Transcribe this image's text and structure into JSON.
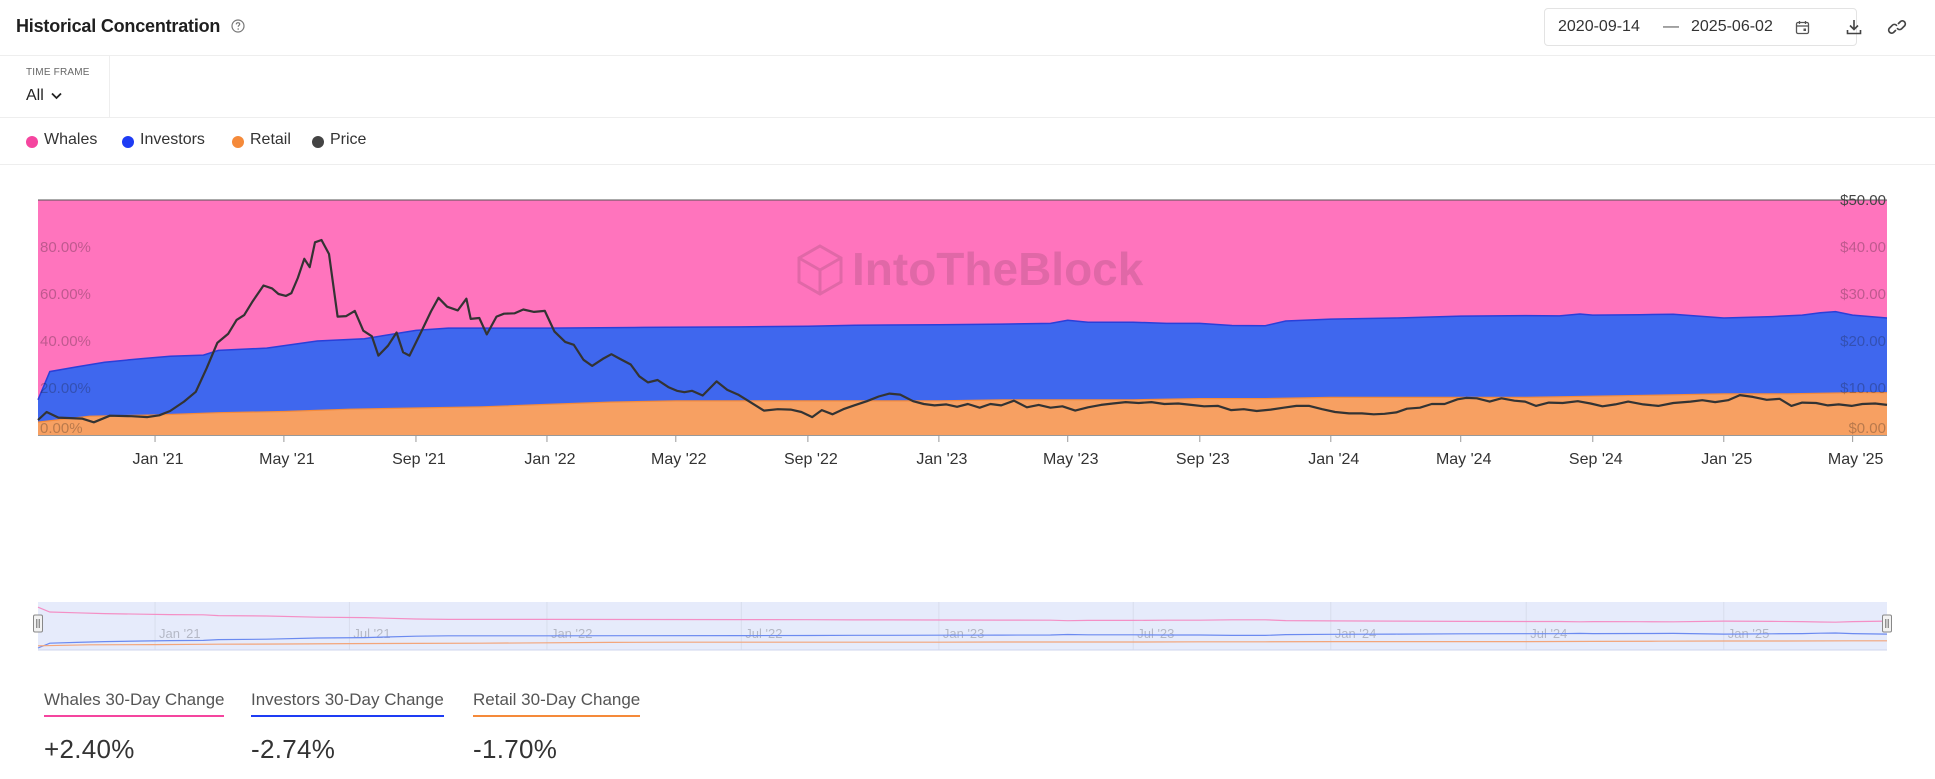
{
  "header": {
    "title": "Historical Concentration",
    "date_start": "2020-09-14",
    "date_separator": "—",
    "date_end": "2025-06-02"
  },
  "timeframe": {
    "label": "TIME FRAME",
    "value": "All"
  },
  "legend": [
    {
      "label": "Whales",
      "color": "#f5459f"
    },
    {
      "label": "Investors",
      "color": "#1e3cf4"
    },
    {
      "label": "Retail",
      "color": "#f58a3a"
    },
    {
      "label": "Price",
      "color": "#444444"
    }
  ],
  "watermark": "IntoTheBlock",
  "stats": [
    {
      "label": "Whales 30-Day Change",
      "value": "+2.40%",
      "color": "#f5459f"
    },
    {
      "label": "Investors 30-Day Change",
      "value": "-2.74%",
      "color": "#1e3cf4"
    },
    {
      "label": "Retail 30-Day Change",
      "value": "-1.70%",
      "color": "#f58a3a"
    }
  ],
  "chart_data": {
    "type": "area",
    "stacked": true,
    "x_unit": "date",
    "x_range": [
      "2020-09-14",
      "2025-06-02"
    ],
    "left_axis": {
      "ticks": [
        "0.00%",
        "20.00%",
        "40.00%",
        "60.00%",
        "80.00%"
      ],
      "range": [
        0,
        100
      ]
    },
    "right_axis": {
      "ticks": [
        "$0.00",
        "$10.00",
        "$20.00",
        "$30.00",
        "$40.00",
        "$50.00"
      ],
      "range": [
        0,
        50
      ]
    },
    "x_ticks": [
      "Jan '21",
      "May '21",
      "Sep '21",
      "Jan '22",
      "May '22",
      "Sep '22",
      "Jan '23",
      "May '23",
      "Sep '23",
      "Jan '24",
      "May '24",
      "Sep '24",
      "Jan '25",
      "May '25"
    ],
    "x_tick_dates": [
      "2021-01-01",
      "2021-05-01",
      "2021-09-01",
      "2022-01-01",
      "2022-05-01",
      "2022-09-01",
      "2023-01-01",
      "2023-05-01",
      "2023-09-01",
      "2024-01-01",
      "2024-05-01",
      "2024-09-01",
      "2025-01-01",
      "2025-05-01"
    ],
    "series": [
      {
        "name": "Retail",
        "color": "#f7a062",
        "axis": "left",
        "points": [
          [
            "2020-09-14",
            5.5
          ],
          [
            "2020-11-01",
            8
          ],
          [
            "2021-01-01",
            8.5
          ],
          [
            "2021-03-01",
            9.5
          ],
          [
            "2021-05-01",
            10
          ],
          [
            "2021-07-01",
            11
          ],
          [
            "2021-09-01",
            11.5
          ],
          [
            "2021-11-01",
            12
          ],
          [
            "2022-01-01",
            13
          ],
          [
            "2022-03-01",
            14
          ],
          [
            "2022-05-01",
            14.5
          ],
          [
            "2022-07-01",
            14.5
          ],
          [
            "2022-09-01",
            14.5
          ],
          [
            "2022-11-01",
            14.5
          ],
          [
            "2023-01-01",
            14.5
          ],
          [
            "2023-03-01",
            15
          ],
          [
            "2023-05-01",
            15
          ],
          [
            "2023-07-01",
            15
          ],
          [
            "2023-09-01",
            15.5
          ],
          [
            "2023-11-01",
            15.5
          ],
          [
            "2024-01-01",
            16
          ],
          [
            "2024-03-01",
            16
          ],
          [
            "2024-05-01",
            16
          ],
          [
            "2024-07-01",
            16
          ],
          [
            "2024-09-01",
            16.5
          ],
          [
            "2024-11-01",
            17
          ],
          [
            "2025-01-01",
            17.5
          ],
          [
            "2025-03-01",
            17.5
          ],
          [
            "2025-05-01",
            18
          ],
          [
            "2025-06-02",
            18
          ]
        ]
      },
      {
        "name": "Investors",
        "color": "#3f67ee",
        "axis": "left",
        "points": [
          [
            "2020-09-14",
            15
          ],
          [
            "2020-09-25",
            27
          ],
          [
            "2020-10-20",
            29
          ],
          [
            "2020-11-15",
            31
          ],
          [
            "2020-12-20",
            32.5
          ],
          [
            "2021-01-15",
            33.5
          ],
          [
            "2021-02-15",
            34
          ],
          [
            "2021-03-01",
            36
          ],
          [
            "2021-04-15",
            37
          ],
          [
            "2021-06-01",
            40
          ],
          [
            "2021-07-15",
            41
          ],
          [
            "2021-09-01",
            44.5
          ],
          [
            "2021-10-01",
            45.5
          ],
          [
            "2021-11-01",
            45.5
          ],
          [
            "2022-01-01",
            45.5
          ],
          [
            "2022-04-01",
            45.8
          ],
          [
            "2022-07-01",
            46
          ],
          [
            "2022-09-01",
            46.3
          ],
          [
            "2022-10-15",
            46.7
          ],
          [
            "2022-11-15",
            46.8
          ],
          [
            "2023-01-01",
            46.9
          ],
          [
            "2023-03-01",
            47.2
          ],
          [
            "2023-04-15",
            47.5
          ],
          [
            "2023-05-01",
            48.8
          ],
          [
            "2023-05-20",
            48
          ],
          [
            "2023-07-01",
            48
          ],
          [
            "2023-08-01",
            47.5
          ],
          [
            "2023-09-01",
            47.5
          ],
          [
            "2023-10-01",
            46.6
          ],
          [
            "2023-11-01",
            46.5
          ],
          [
            "2023-11-20",
            48.5
          ],
          [
            "2024-01-01",
            49.3
          ],
          [
            "2024-03-01",
            49.8
          ],
          [
            "2024-05-01",
            50.6
          ],
          [
            "2024-07-01",
            50.8
          ],
          [
            "2024-08-01",
            50.7
          ],
          [
            "2024-08-20",
            51.5
          ],
          [
            "2024-09-01",
            51
          ],
          [
            "2024-10-15",
            51.2
          ],
          [
            "2024-11-15",
            51.4
          ],
          [
            "2025-01-01",
            49.8
          ],
          [
            "2025-02-15",
            50.4
          ],
          [
            "2025-03-15",
            51
          ],
          [
            "2025-04-01",
            52
          ],
          [
            "2025-04-15",
            52.5
          ],
          [
            "2025-05-01",
            51
          ],
          [
            "2025-06-02",
            49.8
          ]
        ]
      },
      {
        "name": "Whales",
        "color": "#ff74bd",
        "axis": "left",
        "points": [
          [
            "2020-09-14",
            100
          ],
          [
            "2025-06-02",
            100
          ]
        ]
      },
      {
        "name": "Price",
        "color": "#333333",
        "axis": "right",
        "type": "line",
        "points": [
          [
            "2020-09-14",
            3.2
          ],
          [
            "2020-09-22",
            4.9
          ],
          [
            "2020-10-03",
            3.7
          ],
          [
            "2020-10-25",
            3.5
          ],
          [
            "2020-11-05",
            2.7
          ],
          [
            "2020-11-20",
            4.1
          ],
          [
            "2020-12-10",
            4
          ],
          [
            "2020-12-25",
            3.8
          ],
          [
            "2021-01-05",
            4.2
          ],
          [
            "2021-01-15",
            5.1
          ],
          [
            "2021-01-28",
            7.1
          ],
          [
            "2021-02-08",
            9.2
          ],
          [
            "2021-02-18",
            14.2
          ],
          [
            "2021-02-28",
            19.6
          ],
          [
            "2021-03-10",
            21.5
          ],
          [
            "2021-03-18",
            24.5
          ],
          [
            "2021-03-25",
            25.5
          ],
          [
            "2021-04-02",
            28.5
          ],
          [
            "2021-04-12",
            31.8
          ],
          [
            "2021-04-20",
            31.2
          ],
          [
            "2021-04-26",
            30
          ],
          [
            "2021-05-03",
            29.6
          ],
          [
            "2021-05-08",
            30.2
          ],
          [
            "2021-05-14",
            33.4
          ],
          [
            "2021-05-20",
            37.5
          ],
          [
            "2021-05-25",
            35.7
          ],
          [
            "2021-05-30",
            41
          ],
          [
            "2021-06-05",
            41.5
          ],
          [
            "2021-06-12",
            38.5
          ],
          [
            "2021-06-20",
            25.2
          ],
          [
            "2021-06-28",
            25.3
          ],
          [
            "2021-07-06",
            26.4
          ],
          [
            "2021-07-14",
            22.2
          ],
          [
            "2021-07-22",
            21
          ],
          [
            "2021-07-28",
            16.9
          ],
          [
            "2021-08-06",
            19
          ],
          [
            "2021-08-14",
            21.8
          ],
          [
            "2021-08-20",
            17.6
          ],
          [
            "2021-08-26",
            16.9
          ],
          [
            "2021-09-06",
            22
          ],
          [
            "2021-09-15",
            26.3
          ],
          [
            "2021-09-22",
            29.2
          ],
          [
            "2021-09-30",
            27.3
          ],
          [
            "2021-10-10",
            26.5
          ],
          [
            "2021-10-18",
            29
          ],
          [
            "2021-10-22",
            24.7
          ],
          [
            "2021-10-30",
            24.9
          ],
          [
            "2021-11-06",
            21.4
          ],
          [
            "2021-11-15",
            25.2
          ],
          [
            "2021-11-22",
            25.8
          ],
          [
            "2021-12-02",
            25.9
          ],
          [
            "2021-12-10",
            26.7
          ],
          [
            "2021-12-20",
            26.2
          ],
          [
            "2021-12-30",
            26.4
          ],
          [
            "2022-01-08",
            22
          ],
          [
            "2022-01-18",
            19.8
          ],
          [
            "2022-01-26",
            19.2
          ],
          [
            "2022-02-04",
            16
          ],
          [
            "2022-02-12",
            14.7
          ],
          [
            "2022-02-22",
            16.2
          ],
          [
            "2022-03-02",
            17.2
          ],
          [
            "2022-03-10",
            16.2
          ],
          [
            "2022-03-20",
            15
          ],
          [
            "2022-03-28",
            12.5
          ],
          [
            "2022-04-05",
            11.2
          ],
          [
            "2022-04-14",
            11.7
          ],
          [
            "2022-04-24",
            10.2
          ],
          [
            "2022-05-02",
            9.4
          ],
          [
            "2022-05-09",
            9.1
          ],
          [
            "2022-05-16",
            9.4
          ],
          [
            "2022-05-26",
            8.4
          ],
          [
            "2022-06-08",
            11.4
          ],
          [
            "2022-06-18",
            9.6
          ],
          [
            "2022-06-28",
            8.6
          ],
          [
            "2022-07-08",
            7.2
          ],
          [
            "2022-07-22",
            5.2
          ],
          [
            "2022-08-04",
            5.5
          ],
          [
            "2022-08-16",
            5.4
          ],
          [
            "2022-08-26",
            4.9
          ],
          [
            "2022-09-05",
            3.8
          ],
          [
            "2022-09-14",
            5.3
          ],
          [
            "2022-09-24",
            4.4
          ],
          [
            "2022-10-04",
            5.5
          ],
          [
            "2022-10-14",
            6.3
          ],
          [
            "2022-10-26",
            7.2
          ],
          [
            "2022-11-06",
            8.2
          ],
          [
            "2022-11-16",
            8.8
          ],
          [
            "2022-11-26",
            8.6
          ],
          [
            "2022-12-08",
            7.2
          ],
          [
            "2022-12-18",
            6.6
          ],
          [
            "2022-12-28",
            6.3
          ],
          [
            "2023-01-08",
            6.5
          ],
          [
            "2023-01-18",
            6
          ],
          [
            "2023-01-28",
            6.6
          ],
          [
            "2023-02-08",
            5.8
          ],
          [
            "2023-02-18",
            6.6
          ],
          [
            "2023-02-28",
            6.3
          ],
          [
            "2023-03-12",
            7.3
          ],
          [
            "2023-03-24",
            5.9
          ],
          [
            "2023-04-04",
            6.4
          ],
          [
            "2023-04-15",
            5.8
          ],
          [
            "2023-04-26",
            6.1
          ],
          [
            "2023-05-08",
            5.2
          ],
          [
            "2023-05-20",
            5.9
          ],
          [
            "2023-06-01",
            6.4
          ],
          [
            "2023-06-12",
            6.7
          ],
          [
            "2023-06-24",
            7
          ],
          [
            "2023-07-06",
            6.8
          ],
          [
            "2023-07-18",
            7
          ],
          [
            "2023-07-30",
            6.6
          ],
          [
            "2023-08-12",
            6.7
          ],
          [
            "2023-08-24",
            6.4
          ],
          [
            "2023-09-05",
            6.1
          ],
          [
            "2023-09-18",
            6.2
          ],
          [
            "2023-09-30",
            5.3
          ],
          [
            "2023-10-12",
            5.5
          ],
          [
            "2023-10-24",
            5.1
          ],
          [
            "2023-11-06",
            5.4
          ],
          [
            "2023-11-18",
            5.8
          ],
          [
            "2023-11-30",
            6.2
          ],
          [
            "2023-12-12",
            6.2
          ],
          [
            "2023-12-24",
            5.5
          ],
          [
            "2024-01-05",
            4.9
          ],
          [
            "2024-01-18",
            4.6
          ],
          [
            "2024-01-30",
            4.6
          ],
          [
            "2024-02-10",
            4.4
          ],
          [
            "2024-02-20",
            4.5
          ],
          [
            "2024-03-02",
            4.8
          ],
          [
            "2024-03-12",
            5.6
          ],
          [
            "2024-03-24",
            5.8
          ],
          [
            "2024-04-04",
            6.6
          ],
          [
            "2024-04-16",
            6.6
          ],
          [
            "2024-04-28",
            7.6
          ],
          [
            "2024-05-06",
            7.9
          ],
          [
            "2024-05-16",
            7.8
          ],
          [
            "2024-05-28",
            7.1
          ],
          [
            "2024-06-08",
            7.8
          ],
          [
            "2024-06-20",
            7.3
          ],
          [
            "2024-06-30",
            7.1
          ],
          [
            "2024-07-10",
            6.2
          ],
          [
            "2024-07-22",
            6.9
          ],
          [
            "2024-08-04",
            6.8
          ],
          [
            "2024-08-18",
            7.2
          ],
          [
            "2024-08-30",
            6.7
          ],
          [
            "2024-09-10",
            6.1
          ],
          [
            "2024-09-22",
            6.5
          ],
          [
            "2024-10-04",
            7.1
          ],
          [
            "2024-10-18",
            6.5
          ],
          [
            "2024-11-01",
            6.2
          ],
          [
            "2024-11-15",
            6.8
          ],
          [
            "2024-12-01",
            7.1
          ],
          [
            "2024-12-12",
            7.4
          ],
          [
            "2024-12-24",
            7
          ],
          [
            "2025-01-05",
            7.4
          ],
          [
            "2025-01-16",
            8.5
          ],
          [
            "2025-01-28",
            8.1
          ],
          [
            "2025-02-10",
            7.5
          ],
          [
            "2025-02-22",
            7.7
          ],
          [
            "2025-03-05",
            6.2
          ],
          [
            "2025-03-15",
            6.9
          ],
          [
            "2025-03-28",
            6.8
          ],
          [
            "2025-04-08",
            6.3
          ],
          [
            "2025-04-18",
            6.5
          ],
          [
            "2025-04-30",
            6.2
          ],
          [
            "2025-05-10",
            6.6
          ],
          [
            "2025-05-22",
            6.7
          ],
          [
            "2025-06-02",
            6.4
          ]
        ]
      }
    ],
    "navigator_ticks": [
      "Jan '21",
      "Jul '21",
      "Jan '22",
      "Jul '22",
      "Jan '23",
      "Jul '23",
      "Jan '24",
      "Jul '24",
      "Jan '25"
    ],
    "navigator_tick_dates": [
      "2021-01-01",
      "2021-07-01",
      "2022-01-01",
      "2022-07-01",
      "2023-01-01",
      "2023-07-01",
      "2024-01-01",
      "2024-07-01",
      "2025-01-01"
    ]
  }
}
